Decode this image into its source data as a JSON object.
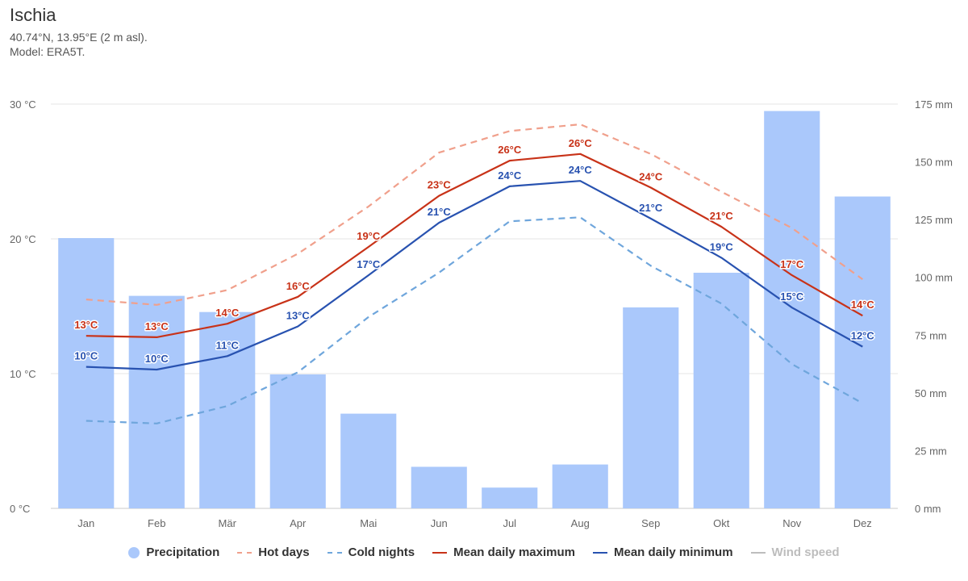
{
  "header": {
    "title": "Ischia",
    "subtitle_location": "40.74°N, 13.95°E (2 m asl).",
    "subtitle_model": "Model: ERA5T."
  },
  "legend": [
    {
      "label": "Precipitation",
      "symbol": "circle",
      "color": "#aac8fb",
      "active": true
    },
    {
      "label": "Hot days",
      "symbol": "dash",
      "color": "#f0a08c",
      "active": true
    },
    {
      "label": "Cold nights",
      "symbol": "dash",
      "color": "#6fa6dc",
      "active": true
    },
    {
      "label": "Mean daily maximum",
      "symbol": "line",
      "color": "#c83218",
      "active": true
    },
    {
      "label": "Mean daily minimum",
      "symbol": "line",
      "color": "#2852b0",
      "active": true
    },
    {
      "label": "Wind speed",
      "symbol": "line",
      "color": "#bdbdbd",
      "active": false
    }
  ],
  "chart_data": {
    "type": "bar",
    "categories": [
      "Jan",
      "Feb",
      "Mär",
      "Apr",
      "Mai",
      "Jun",
      "Jul",
      "Aug",
      "Sep",
      "Okt",
      "Nov",
      "Dez"
    ],
    "y_left": {
      "ticks": [
        "0 °C",
        "10 °C",
        "20 °C",
        "30 °C"
      ],
      "range": [
        0,
        30
      ],
      "unit": "°C"
    },
    "y_right": {
      "ticks": [
        "0 mm",
        "25 mm",
        "50 mm",
        "75 mm",
        "100 mm",
        "125 mm",
        "150 mm",
        "175 mm"
      ],
      "range": [
        0,
        175
      ],
      "unit": "mm"
    },
    "grid": true,
    "legend_position": "bottom",
    "series": [
      {
        "name": "Precipitation",
        "type": "bar",
        "axis": "right",
        "color": "#aac8fb",
        "values": [
          117,
          92,
          85,
          58,
          41,
          18,
          9,
          19,
          87,
          102,
          172,
          135
        ]
      },
      {
        "name": "Hot days",
        "type": "line",
        "style": "dashed",
        "axis": "left",
        "color": "#f0a08c",
        "values": [
          15.5,
          15.1,
          16.2,
          18.9,
          22.4,
          26.4,
          28.0,
          28.5,
          26.3,
          23.5,
          20.8,
          17.0
        ]
      },
      {
        "name": "Cold nights",
        "type": "line",
        "style": "dashed",
        "axis": "left",
        "color": "#6fa6dc",
        "values": [
          6.5,
          6.3,
          7.6,
          10.1,
          14.2,
          17.5,
          21.3,
          21.6,
          18.0,
          15.2,
          10.7,
          7.8
        ]
      },
      {
        "name": "Mean daily maximum",
        "type": "line",
        "axis": "left",
        "color": "#c83218",
        "values": [
          12.8,
          12.7,
          13.7,
          15.7,
          19.4,
          23.2,
          25.8,
          26.3,
          23.8,
          20.9,
          17.3,
          14.3
        ],
        "labels": [
          "13°C",
          "13°C",
          "14°C",
          "16°C",
          "19°C",
          "23°C",
          "26°C",
          "26°C",
          "24°C",
          "21°C",
          "17°C",
          "14°C"
        ]
      },
      {
        "name": "Mean daily minimum",
        "type": "line",
        "axis": "left",
        "color": "#2852b0",
        "values": [
          10.5,
          10.3,
          11.3,
          13.5,
          17.3,
          21.2,
          23.9,
          24.3,
          21.5,
          18.6,
          14.9,
          12.0
        ],
        "labels": [
          "10°C",
          "10°C",
          "11°C",
          "13°C",
          "17°C",
          "21°C",
          "24°C",
          "24°C",
          "21°C",
          "19°C",
          "15°C",
          "12°C"
        ]
      }
    ]
  }
}
